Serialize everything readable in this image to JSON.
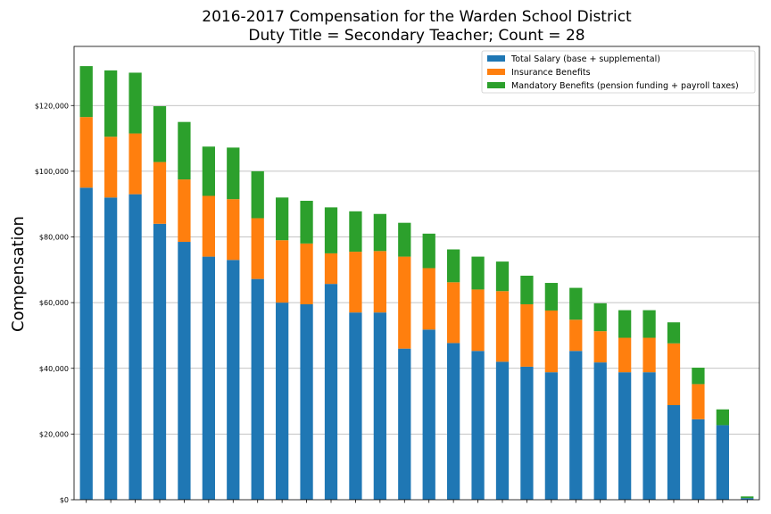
{
  "chart_data": {
    "type": "bar",
    "stacked": true,
    "title": [
      "2016-2017 Compensation for the Warden School District",
      "Duty Title = Secondary Teacher; Count = 28"
    ],
    "ylabel": "Compensation",
    "xlabel": "",
    "ylim": [
      0,
      138000
    ],
    "yticks": [
      0,
      20000,
      40000,
      60000,
      80000,
      100000,
      120000
    ],
    "ytick_labels": [
      "$0",
      "$20,000",
      "$40,000",
      "$60,000",
      "$80,000",
      "$100,000",
      "$120,000"
    ],
    "grid": "y",
    "legend_position": "top-right",
    "colors": {
      "salary": "#1f77b4",
      "insurance": "#ff7f0e",
      "mandatory": "#2ca02c"
    },
    "series": [
      {
        "name": "Total Salary (base + supplemental)",
        "values": [
          95000,
          92000,
          93000,
          84000,
          78500,
          74000,
          73000,
          67200,
          60000,
          59500,
          65700,
          57000,
          57000,
          46000,
          51800,
          47700,
          45300,
          42000,
          40500,
          38800,
          45300,
          41800,
          38800,
          38800,
          28800,
          24500,
          22700,
          500
        ]
      },
      {
        "name": "Insurance Benefits",
        "values": [
          21500,
          18500,
          18500,
          18800,
          19000,
          18500,
          18500,
          18500,
          19000,
          18500,
          9300,
          18500,
          18700,
          28000,
          18700,
          18500,
          18700,
          21500,
          19000,
          18800,
          9500,
          9500,
          10500,
          10500,
          18800,
          10700,
          0,
          0
        ]
      },
      {
        "name": "Mandatory Benefits (pension funding + payroll taxes)",
        "values": [
          15500,
          20200,
          18500,
          17000,
          17500,
          15000,
          15700,
          14300,
          13000,
          13000,
          14000,
          12300,
          11300,
          10300,
          10500,
          10000,
          10000,
          9000,
          8700,
          8400,
          9700,
          8500,
          8400,
          8400,
          6400,
          5000,
          4800,
          500
        ]
      }
    ]
  }
}
